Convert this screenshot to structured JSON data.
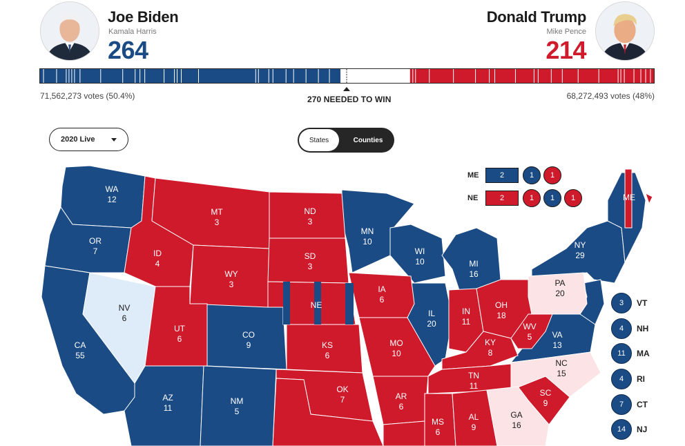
{
  "biden": {
    "name": "Joe Biden",
    "vp": "Kamala Harris",
    "electoral_votes": "264",
    "popular_votes": "71,562,273 votes (50.4%)",
    "color": "#1b4b84"
  },
  "trump": {
    "name": "Donald Trump",
    "vp": "Mike Pence",
    "electoral_votes": "214",
    "popular_votes": "68,272,493 votes (48%)",
    "color": "#cf1a2c"
  },
  "threshold_label": "270 NEEDED TO WIN",
  "year_select": {
    "value": "2020 Live"
  },
  "view_toggle": {
    "states": "States",
    "counties": "Counties",
    "selected": "Counties"
  },
  "colors": {
    "dem": "#1b4b84",
    "gop": "#cf1a2c",
    "lean_dem": "#deebf9",
    "lean_gop": "#fce4e6",
    "border": "#ffffff"
  },
  "split_states": {
    "me": {
      "label": "ME",
      "total": "2",
      "districts": [
        "1",
        "1"
      ]
    },
    "ne": {
      "label": "NE",
      "total": "2",
      "districts": [
        "1",
        "1",
        "1"
      ]
    }
  },
  "small_states": [
    {
      "abbr": "VT",
      "votes": "3"
    },
    {
      "abbr": "NH",
      "votes": "4"
    },
    {
      "abbr": "MA",
      "votes": "11"
    },
    {
      "abbr": "RI",
      "votes": "4"
    },
    {
      "abbr": "CT",
      "votes": "7"
    },
    {
      "abbr": "NJ",
      "votes": "14"
    }
  ],
  "states": [
    {
      "abbr": "WA",
      "votes": "12"
    },
    {
      "abbr": "OR",
      "votes": "7"
    },
    {
      "abbr": "CA",
      "votes": "55"
    },
    {
      "abbr": "NV",
      "votes": "6"
    },
    {
      "abbr": "ID",
      "votes": "4"
    },
    {
      "abbr": "MT",
      "votes": "3"
    },
    {
      "abbr": "WY",
      "votes": "3"
    },
    {
      "abbr": "UT",
      "votes": "6"
    },
    {
      "abbr": "AZ",
      "votes": "11"
    },
    {
      "abbr": "CO",
      "votes": "9"
    },
    {
      "abbr": "NM",
      "votes": "5"
    },
    {
      "abbr": "ND",
      "votes": "3"
    },
    {
      "abbr": "SD",
      "votes": "3"
    },
    {
      "abbr": "NE",
      "votes": ""
    },
    {
      "abbr": "KS",
      "votes": "6"
    },
    {
      "abbr": "OK",
      "votes": "7"
    },
    {
      "abbr": "MN",
      "votes": "10"
    },
    {
      "abbr": "IA",
      "votes": "6"
    },
    {
      "abbr": "MO",
      "votes": "10"
    },
    {
      "abbr": "AR",
      "votes": "6"
    },
    {
      "abbr": "WI",
      "votes": "10"
    },
    {
      "abbr": "IL",
      "votes": "20"
    },
    {
      "abbr": "MI",
      "votes": "16"
    },
    {
      "abbr": "IN",
      "votes": "11"
    },
    {
      "abbr": "OH",
      "votes": "18"
    },
    {
      "abbr": "KY",
      "votes": "8"
    },
    {
      "abbr": "TN",
      "votes": "11"
    },
    {
      "abbr": "MS",
      "votes": "6"
    },
    {
      "abbr": "AL",
      "votes": "9"
    },
    {
      "abbr": "GA",
      "votes": "16"
    },
    {
      "abbr": "SC",
      "votes": "9"
    },
    {
      "abbr": "NC",
      "votes": "15"
    },
    {
      "abbr": "VA",
      "votes": "13"
    },
    {
      "abbr": "WV",
      "votes": "5"
    },
    {
      "abbr": "PA",
      "votes": "20"
    },
    {
      "abbr": "NY",
      "votes": "29"
    },
    {
      "abbr": "ME",
      "votes": ""
    }
  ]
}
